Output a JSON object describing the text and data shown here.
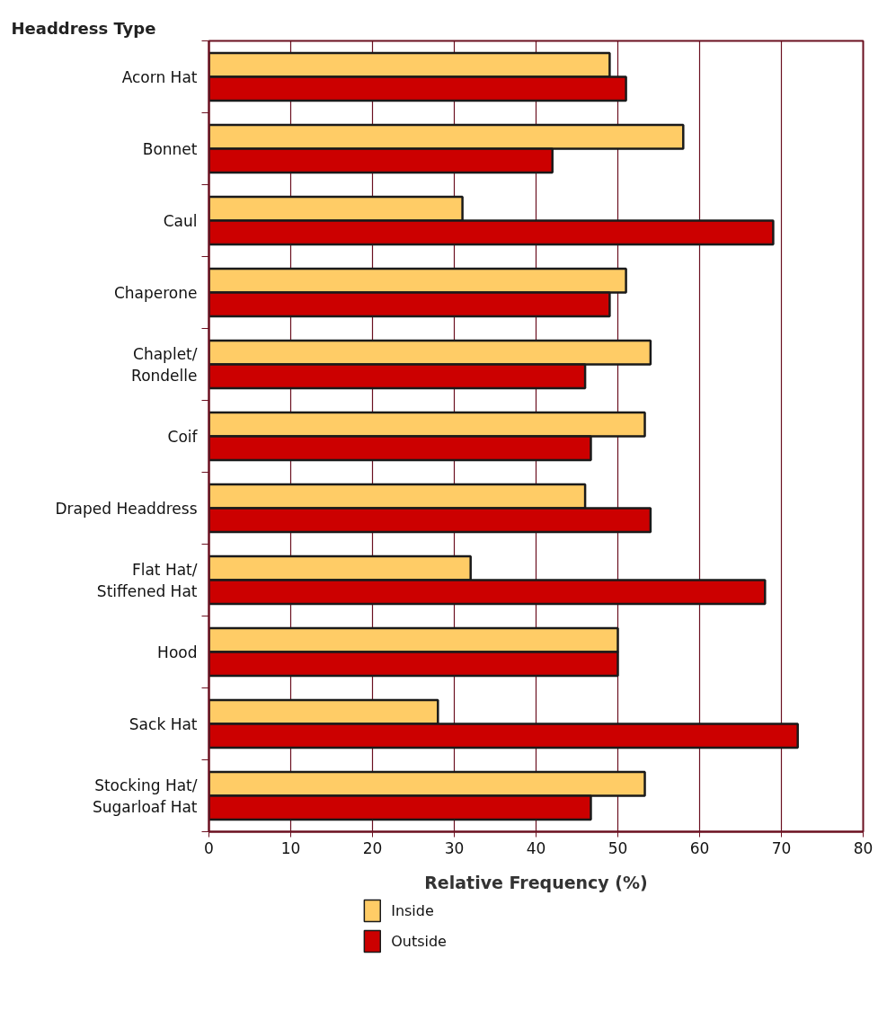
{
  "chart_data": {
    "type": "bar",
    "orientation": "horizontal",
    "title": "Headdress Type",
    "xlabel": "Relative Frequency (%)",
    "categories": [
      "Acorn Hat",
      "Bonnet",
      "Caul",
      "Chaperone",
      "Chaplet/\nRondelle",
      "Coif",
      "Draped Headdress",
      "Flat Hat/\nStiffened Hat",
      "Hood",
      "Sack Hat",
      "Stocking Hat/\nSugarloaf Hat"
    ],
    "series": [
      {
        "name": "Inside",
        "color": "#ffcc66",
        "values": [
          49,
          58,
          31,
          51,
          54,
          53.3,
          46,
          32,
          50,
          28,
          53.3
        ]
      },
      {
        "name": "Outside",
        "color": "#cc0000",
        "values": [
          51,
          42,
          69,
          49,
          46,
          46.7,
          54,
          68,
          50,
          72,
          46.7
        ]
      }
    ],
    "xlim": [
      0,
      80
    ],
    "xticks": [
      0,
      10,
      20,
      30,
      40,
      50,
      60,
      70,
      80
    ],
    "grid": "x",
    "legend": "bottom left"
  }
}
